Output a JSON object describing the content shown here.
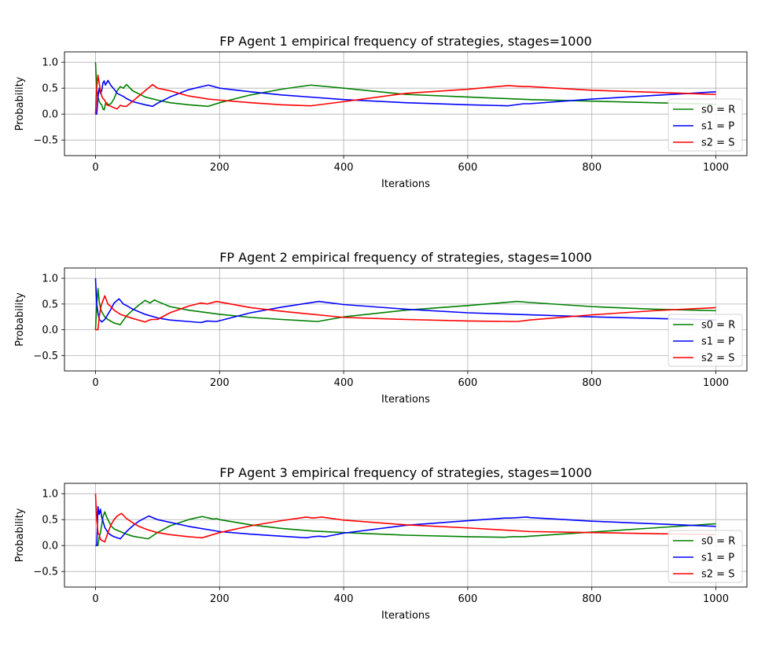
{
  "chart_data": [
    {
      "type": "line",
      "title": "FP Agent 1 empirical frequency of strategies, stages=1000",
      "xlabel": "Iterations",
      "ylabel": "Probability",
      "xlim": [
        -50,
        1050
      ],
      "ylim": [
        -0.8,
        1.2
      ],
      "xticks": [
        0,
        200,
        400,
        600,
        800,
        1000
      ],
      "yticks": [
        -0.5,
        0.0,
        0.5,
        1.0
      ],
      "grid": true,
      "legend_position": "lower-right",
      "series": [
        {
          "name": "s0 = R",
          "color": "#008000",
          "x": [
            0,
            2,
            4,
            6,
            8,
            10,
            12,
            14,
            16,
            18,
            20,
            25,
            30,
            35,
            40,
            45,
            50,
            60,
            80,
            100,
            120,
            150,
            182,
            200,
            250,
            300,
            347,
            400,
            500,
            600,
            700,
            800,
            900,
            1000
          ],
          "y": [
            1.0,
            0.5,
            0.33,
            0.25,
            0.2,
            0.18,
            0.1,
            0.08,
            0.2,
            0.22,
            0.18,
            0.2,
            0.3,
            0.45,
            0.53,
            0.5,
            0.57,
            0.45,
            0.33,
            0.27,
            0.22,
            0.18,
            0.15,
            0.22,
            0.37,
            0.48,
            0.56,
            0.5,
            0.38,
            0.33,
            0.28,
            0.25,
            0.22,
            0.19
          ]
        },
        {
          "name": "s1 = P",
          "color": "#0000ff",
          "x": [
            0,
            2,
            4,
            6,
            8,
            10,
            12,
            14,
            16,
            18,
            20,
            25,
            30,
            35,
            40,
            45,
            50,
            60,
            80,
            92,
            100,
            120,
            150,
            182,
            200,
            250,
            300,
            400,
            500,
            600,
            665,
            690,
            700,
            800,
            900,
            1000
          ],
          "y": [
            0.0,
            0.0,
            0.33,
            0.5,
            0.4,
            0.45,
            0.6,
            0.64,
            0.56,
            0.6,
            0.65,
            0.55,
            0.48,
            0.4,
            0.37,
            0.34,
            0.3,
            0.24,
            0.18,
            0.15,
            0.21,
            0.33,
            0.47,
            0.56,
            0.5,
            0.43,
            0.37,
            0.28,
            0.22,
            0.18,
            0.16,
            0.2,
            0.2,
            0.29,
            0.36,
            0.43
          ]
        },
        {
          "name": "s2 = S",
          "color": "#ff0000",
          "x": [
            0,
            2,
            4,
            6,
            8,
            10,
            12,
            14,
            16,
            18,
            20,
            25,
            30,
            35,
            40,
            45,
            50,
            60,
            80,
            92,
            100,
            120,
            150,
            182,
            200,
            250,
            300,
            347,
            400,
            500,
            600,
            665,
            690,
            700,
            800,
            900,
            1000
          ],
          "y": [
            0.0,
            0.5,
            0.75,
            0.6,
            0.45,
            0.35,
            0.3,
            0.28,
            0.24,
            0.18,
            0.17,
            0.15,
            0.12,
            0.1,
            0.17,
            0.15,
            0.15,
            0.25,
            0.45,
            0.57,
            0.5,
            0.45,
            0.35,
            0.29,
            0.27,
            0.22,
            0.18,
            0.16,
            0.24,
            0.4,
            0.48,
            0.55,
            0.53,
            0.53,
            0.46,
            0.42,
            0.38
          ]
        }
      ]
    },
    {
      "type": "line",
      "title": "FP Agent 2 empirical frequency of strategies, stages=1000",
      "xlabel": "Iterations",
      "ylabel": "Probability",
      "xlim": [
        -50,
        1050
      ],
      "ylim": [
        -0.8,
        1.2
      ],
      "xticks": [
        0,
        200,
        400,
        600,
        800,
        1000
      ],
      "yticks": [
        -0.5,
        0.0,
        0.5,
        1.0
      ],
      "grid": true,
      "legend_position": "lower-right",
      "series": [
        {
          "name": "s0 = R",
          "color": "#008000",
          "x": [
            0,
            2,
            4,
            6,
            8,
            10,
            15,
            20,
            30,
            40,
            50,
            60,
            70,
            80,
            88,
            95,
            100,
            120,
            150,
            200,
            250,
            300,
            358,
            400,
            500,
            600,
            680,
            700,
            800,
            900,
            1000
          ],
          "y": [
            0.0,
            0.5,
            0.8,
            0.55,
            0.42,
            0.35,
            0.25,
            0.2,
            0.13,
            0.1,
            0.27,
            0.38,
            0.48,
            0.57,
            0.52,
            0.58,
            0.55,
            0.45,
            0.38,
            0.3,
            0.24,
            0.2,
            0.16,
            0.25,
            0.38,
            0.47,
            0.55,
            0.53,
            0.45,
            0.4,
            0.37
          ]
        },
        {
          "name": "s1 = P",
          "color": "#0000ff",
          "x": [
            0,
            2,
            4,
            6,
            8,
            10,
            15,
            20,
            25,
            30,
            38,
            45,
            50,
            60,
            80,
            100,
            120,
            150,
            170,
            180,
            195,
            250,
            300,
            360,
            400,
            500,
            600,
            700,
            800,
            900,
            1000
          ],
          "y": [
            1.0,
            0.5,
            0.33,
            0.2,
            0.18,
            0.15,
            0.2,
            0.3,
            0.4,
            0.52,
            0.6,
            0.5,
            0.47,
            0.4,
            0.3,
            0.23,
            0.19,
            0.16,
            0.14,
            0.17,
            0.16,
            0.33,
            0.44,
            0.55,
            0.49,
            0.4,
            0.33,
            0.29,
            0.25,
            0.22,
            0.19
          ]
        },
        {
          "name": "s2 = S",
          "color": "#ff0000",
          "x": [
            0,
            2,
            4,
            6,
            8,
            10,
            15,
            20,
            25,
            30,
            40,
            50,
            60,
            80,
            85,
            90,
            100,
            120,
            150,
            170,
            180,
            195,
            250,
            300,
            400,
            500,
            600,
            680,
            700,
            800,
            900,
            1000
          ],
          "y": [
            0.0,
            0.0,
            0.0,
            0.25,
            0.4,
            0.5,
            0.66,
            0.5,
            0.45,
            0.38,
            0.3,
            0.26,
            0.22,
            0.15,
            0.18,
            0.2,
            0.2,
            0.33,
            0.46,
            0.52,
            0.5,
            0.55,
            0.43,
            0.36,
            0.24,
            0.2,
            0.17,
            0.16,
            0.19,
            0.29,
            0.37,
            0.43
          ]
        }
      ]
    },
    {
      "type": "line",
      "title": "FP Agent 3 empirical frequency of strategies, stages=1000",
      "xlabel": "Iterations",
      "ylabel": "Probability",
      "xlim": [
        -50,
        1050
      ],
      "ylim": [
        -0.8,
        1.2
      ],
      "xticks": [
        0,
        200,
        400,
        600,
        800,
        1000
      ],
      "yticks": [
        -0.5,
        0.0,
        0.5,
        1.0
      ],
      "grid": true,
      "legend_position": "lower-right",
      "series": [
        {
          "name": "s0 = R",
          "color": "#008000",
          "x": [
            0,
            2,
            4,
            6,
            8,
            10,
            12,
            15,
            18,
            20,
            25,
            30,
            40,
            50,
            60,
            70,
            85,
            100,
            120,
            150,
            172,
            190,
            195,
            200,
            250,
            300,
            350,
            400,
            500,
            600,
            660,
            670,
            690,
            700,
            800,
            900,
            1000
          ],
          "y": [
            0.0,
            0.0,
            0.0,
            0.17,
            0.25,
            0.4,
            0.55,
            0.65,
            0.55,
            0.5,
            0.38,
            0.32,
            0.27,
            0.22,
            0.18,
            0.16,
            0.13,
            0.25,
            0.38,
            0.5,
            0.56,
            0.51,
            0.52,
            0.5,
            0.4,
            0.33,
            0.28,
            0.25,
            0.2,
            0.17,
            0.16,
            0.17,
            0.17,
            0.18,
            0.26,
            0.34,
            0.42
          ]
        },
        {
          "name": "s1 = P",
          "color": "#0000ff",
          "x": [
            0,
            2,
            4,
            6,
            8,
            10,
            15,
            20,
            25,
            30,
            40,
            50,
            60,
            70,
            86,
            100,
            150,
            200,
            250,
            300,
            340,
            350,
            360,
            370,
            400,
            500,
            600,
            660,
            670,
            695,
            700,
            800,
            900,
            1000
          ],
          "y": [
            0.0,
            0.0,
            0.75,
            0.6,
            0.7,
            0.55,
            0.35,
            0.25,
            0.2,
            0.17,
            0.13,
            0.27,
            0.38,
            0.47,
            0.57,
            0.5,
            0.37,
            0.27,
            0.22,
            0.18,
            0.15,
            0.17,
            0.18,
            0.17,
            0.24,
            0.39,
            0.48,
            0.53,
            0.53,
            0.55,
            0.54,
            0.47,
            0.42,
            0.37
          ]
        },
        {
          "name": "s2 = S",
          "color": "#ff0000",
          "x": [
            0,
            2,
            4,
            6,
            8,
            10,
            15,
            20,
            25,
            30,
            35,
            42,
            50,
            60,
            70,
            85,
            100,
            120,
            150,
            172,
            200,
            250,
            300,
            340,
            350,
            365,
            400,
            500,
            600,
            700,
            800,
            900,
            1000
          ],
          "y": [
            1.0,
            0.5,
            0.25,
            0.2,
            0.12,
            0.1,
            0.07,
            0.25,
            0.4,
            0.5,
            0.57,
            0.62,
            0.52,
            0.44,
            0.37,
            0.3,
            0.25,
            0.21,
            0.17,
            0.15,
            0.25,
            0.38,
            0.48,
            0.55,
            0.53,
            0.55,
            0.49,
            0.4,
            0.34,
            0.27,
            0.25,
            0.23,
            0.21
          ]
        }
      ]
    }
  ]
}
